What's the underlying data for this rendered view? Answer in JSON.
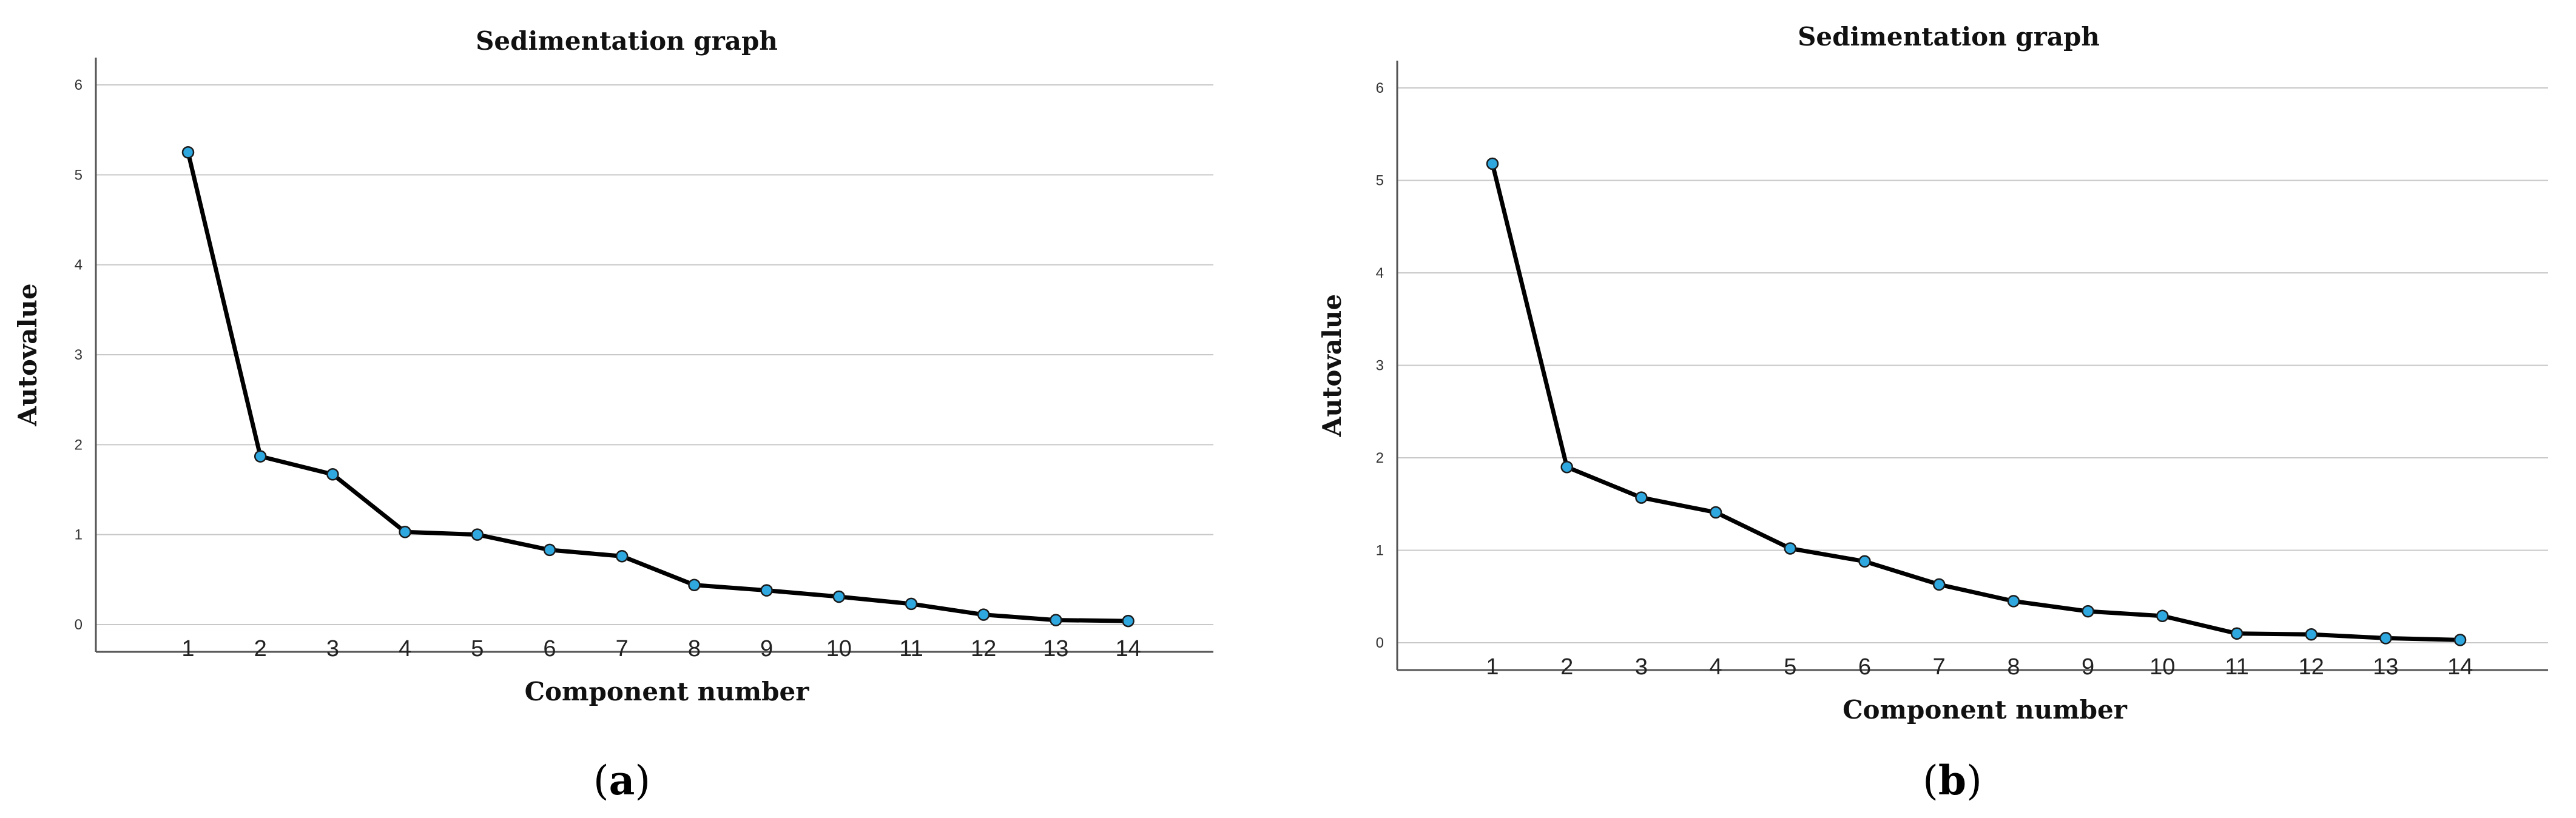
{
  "chart_data": [
    {
      "type": "line",
      "panel_label": "a",
      "title": "Sedimentation graph",
      "xlabel": "Component number",
      "ylabel": "Autovalue",
      "x": [
        1,
        2,
        3,
        4,
        5,
        6,
        7,
        8,
        9,
        10,
        11,
        12,
        13,
        14
      ],
      "series": [
        {
          "values": [
            5.25,
            1.87,
            1.67,
            1.03,
            1.0,
            0.83,
            0.76,
            0.44,
            0.38,
            0.31,
            0.23,
            0.11,
            0.05,
            0.04
          ]
        }
      ],
      "ylim": [
        0,
        6
      ],
      "yticks": [
        "0",
        "1",
        "2",
        "3",
        "4",
        "5",
        "6"
      ],
      "xticks": [
        "1",
        "2",
        "3",
        "4",
        "5",
        "6",
        "7",
        "8",
        "9",
        "10",
        "11",
        "12",
        "13",
        "14"
      ],
      "grid": true,
      "colors": {
        "line": "#000000",
        "marker": "#2fa8e0"
      }
    },
    {
      "type": "line",
      "panel_label": "b",
      "title": "Sedimentation graph",
      "xlabel": "Component number",
      "ylabel": "Autovalue",
      "x": [
        1,
        2,
        3,
        4,
        5,
        6,
        7,
        8,
        9,
        10,
        11,
        12,
        13,
        14
      ],
      "series": [
        {
          "values": [
            5.18,
            1.9,
            1.57,
            1.41,
            1.02,
            0.88,
            0.63,
            0.45,
            0.34,
            0.29,
            0.1,
            0.09,
            0.05,
            0.03
          ]
        }
      ],
      "ylim": [
        0,
        6
      ],
      "yticks": [
        "0",
        "1",
        "2",
        "3",
        "4",
        "5",
        "6"
      ],
      "xticks": [
        "1",
        "2",
        "3",
        "4",
        "5",
        "6",
        "7",
        "8",
        "9",
        "10",
        "11",
        "12",
        "13",
        "14"
      ],
      "grid": true,
      "colors": {
        "line": "#000000",
        "marker": "#2fa8e0"
      }
    }
  ]
}
